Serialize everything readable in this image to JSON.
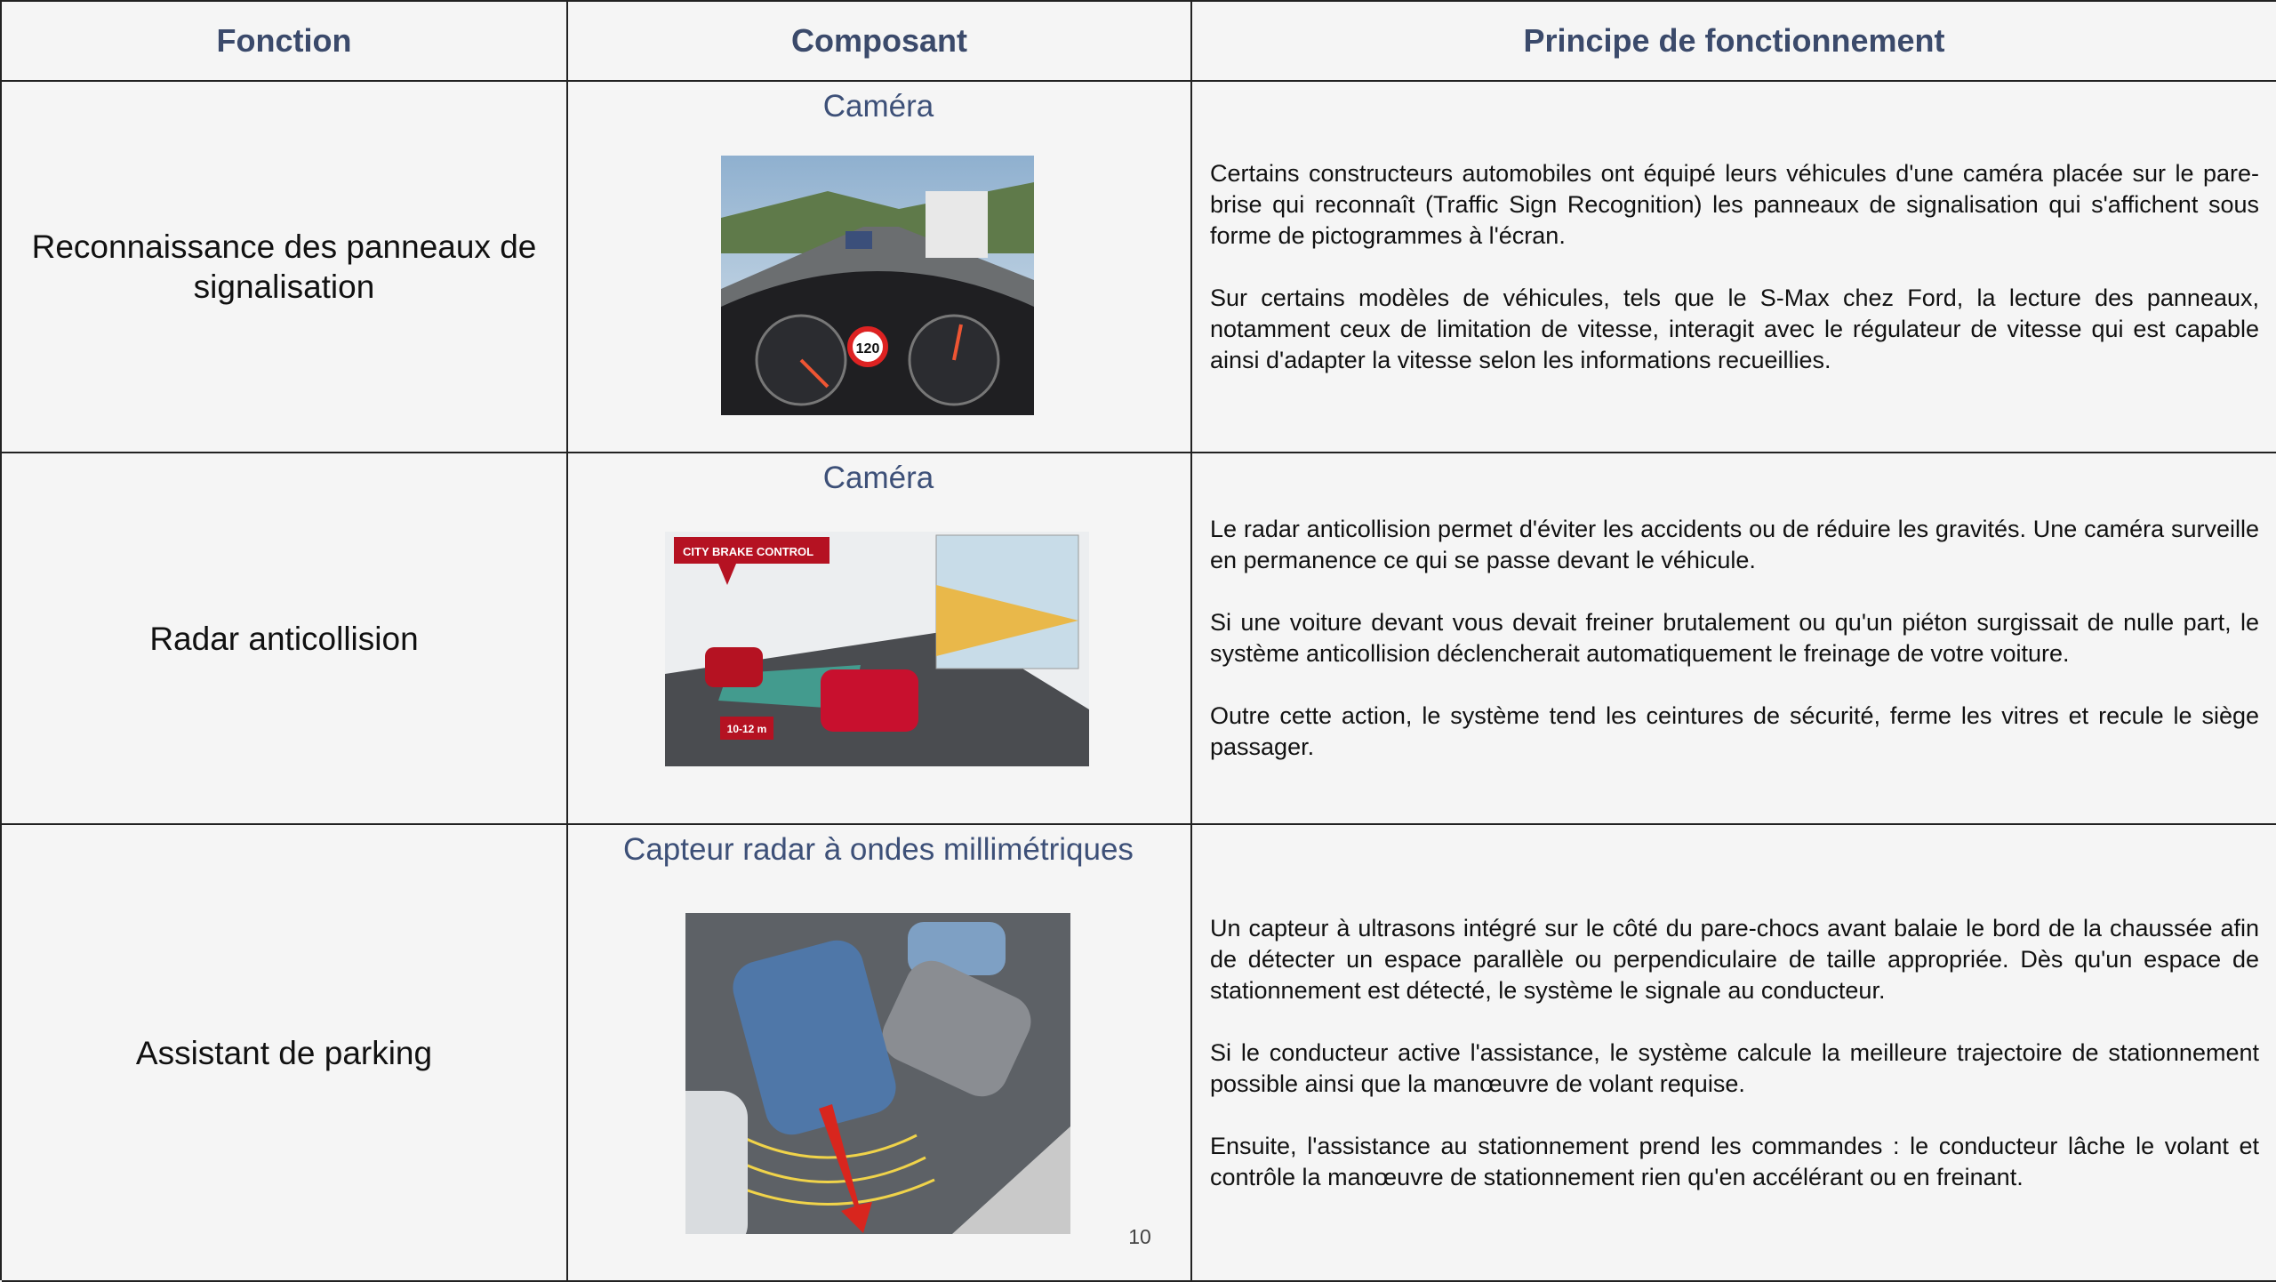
{
  "header": {
    "columns": [
      "Fonction",
      "Composant",
      "Principe de fonctionnement"
    ]
  },
  "rows": [
    {
      "function": "Reconnaissance des panneaux de signalisation",
      "component": "Caméra",
      "image_labels": [
        "120"
      ],
      "paragraphs": [
        "Certains constructeurs automobiles ont équipé leurs véhicules d'une caméra placée sur le pare-brise qui reconnaît (Traffic Sign Recognition) les panneaux de signalisation qui s'affichent sous forme de pictogrammes à l'écran.",
        "Sur certains modèles de véhicules, tels que le S-Max chez Ford, la lecture des panneaux, notamment ceux de limitation de vitesse, interagit avec le régulateur de vitesse qui est capable ainsi d'adapter la vitesse selon les informations recueillies."
      ]
    },
    {
      "function": "Radar anticollision",
      "component": "Caméra",
      "image_labels": [
        "CITY BRAKE CONTROL",
        "10-12 m"
      ],
      "paragraphs": [
        "Le radar anticollision permet d'éviter les accidents ou de réduire les gravités. Une caméra surveille en permanence ce qui se passe devant le véhicule.",
        "Si une voiture devant vous devait freiner brutalement ou qu'un piéton surgissait de nulle part, le système anticollision déclencherait automatiquement le freinage de votre voiture.",
        "Outre cette action, le système tend les ceintures de sécurité, ferme les vitres et recule le siège passager."
      ]
    },
    {
      "function": "Assistant de parking",
      "component": "Capteur radar à ondes millimétriques",
      "paragraphs": [
        "Un capteur à ultrasons intégré sur le côté du pare-chocs avant balaie le bord de la chaussée afin de détecter un espace parallèle ou perpendiculaire de taille appropriée. Dès qu'un espace de stationnement est détecté, le système le signale au conducteur.",
        "Si le conducteur active l'assistance, le système calcule la meilleure trajectoire de stationnement possible ainsi que la manœuvre de volant requise.",
        "Ensuite, l'assistance au stationnement prend les commandes : le conducteur lâche le volant et contrôle la manœuvre de stationnement rien qu'en accélérant ou en freinant."
      ]
    }
  ],
  "page_number": "10"
}
